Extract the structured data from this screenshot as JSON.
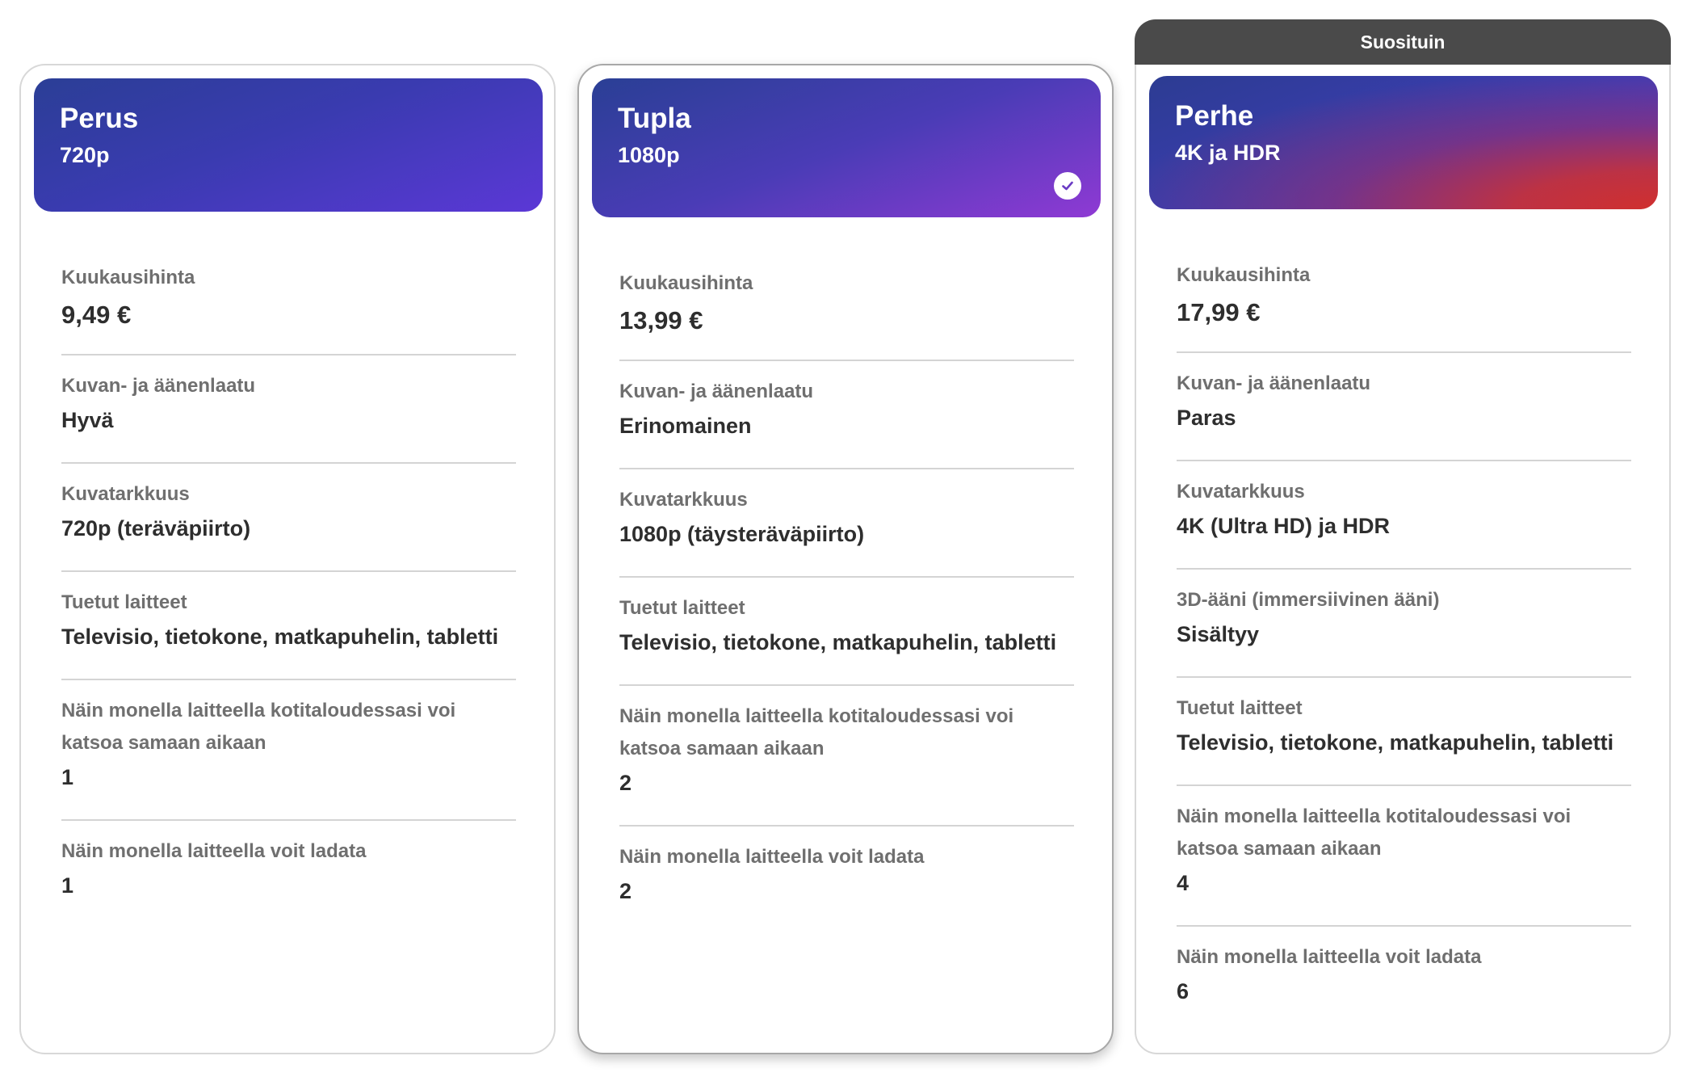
{
  "plans": [
    {
      "name": "Perus",
      "resolution": "720p",
      "rows": [
        {
          "label": "Kuukausihinta",
          "value": "9,49 €"
        },
        {
          "label": "Kuvan- ja äänenlaatu",
          "value": "Hyvä"
        },
        {
          "label": "Kuvatarkkuus",
          "value": "720p (teräväpiirto)"
        },
        {
          "label": "Tuetut laitteet",
          "value": "Televisio, tietokone, matkapuhelin, tabletti"
        },
        {
          "label": "Näin monella laitteella kotitaloudessasi voi katsoa samaan aikaan",
          "value": "1"
        },
        {
          "label": "Näin monella laitteella voit ladata",
          "value": "1"
        }
      ]
    },
    {
      "name": "Tupla",
      "resolution": "1080p",
      "selected": true,
      "rows": [
        {
          "label": "Kuukausihinta",
          "value": "13,99 €"
        },
        {
          "label": "Kuvan- ja äänenlaatu",
          "value": "Erinomainen"
        },
        {
          "label": "Kuvatarkkuus",
          "value": "1080p (täysteräväpiirto)"
        },
        {
          "label": "Tuetut laitteet",
          "value": "Televisio, tietokone, matkapuhelin, tabletti"
        },
        {
          "label": "Näin monella laitteella kotitaloudessasi voi katsoa samaan aikaan",
          "value": "2"
        },
        {
          "label": "Näin monella laitteella voit ladata",
          "value": "2"
        }
      ]
    },
    {
      "name": "Perhe",
      "resolution": "4K ja HDR",
      "badge": "Suosituin",
      "rows": [
        {
          "label": "Kuukausihinta",
          "value": "17,99 €"
        },
        {
          "label": "Kuvan- ja äänenlaatu",
          "value": "Paras"
        },
        {
          "label": "Kuvatarkkuus",
          "value": "4K (Ultra HD) ja HDR"
        },
        {
          "label": "3D-ääni (immersiivinen ääni)",
          "value": "Sisältyy"
        },
        {
          "label": "Tuetut laitteet",
          "value": "Televisio, tietokone, matkapuhelin, tabletti"
        },
        {
          "label": "Näin monella laitteella kotitaloudessasi voi katsoa samaan aikaan",
          "value": "4"
        },
        {
          "label": "Näin monella laitteella voit ladata",
          "value": "6"
        }
      ]
    }
  ],
  "colors": {
    "selected_border": "#a8a8a8",
    "badge_bg": "#4a4a4a",
    "label_text": "#6f6f6f",
    "value_text": "#2e2e2e"
  },
  "icons": {
    "selected_indicator": "checkmark-circle-icon"
  }
}
